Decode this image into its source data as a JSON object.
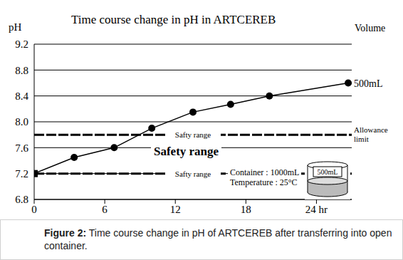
{
  "chart_data": {
    "type": "line",
    "title": "Time course change in pH in ARTCEREB",
    "y_label": "pH",
    "legend_title": "Volume",
    "x": [
      0,
      3.4,
      6.8,
      10,
      13.5,
      16.7,
      20,
      26.7
    ],
    "series": [
      {
        "name": "500mL",
        "color": "#000000",
        "marker": "circle",
        "line_style": "solid",
        "values": [
          7.2,
          7.45,
          7.6,
          7.9,
          8.15,
          8.27,
          8.4,
          8.6
        ]
      }
    ],
    "xlim": [
      0,
      27
    ],
    "xticks": [
      0,
      6,
      12,
      18,
      {
        "value": 24,
        "label": "24 hr"
      }
    ],
    "ylim": [
      6.8,
      9.2
    ],
    "yticks": [
      6.8,
      7.2,
      7.6,
      {
        "value": 8,
        "label": "8.0"
      },
      8.4,
      8.8,
      9.2
    ],
    "grid": true,
    "reference_lines": [
      {
        "value": 7.8,
        "label": "Safty range",
        "end_label": "Allowance limit"
      },
      {
        "value": 7.2,
        "label": "Safty range"
      }
    ],
    "annotations": [
      "Safety range"
    ],
    "inset": {
      "lines": [
        "Container : 1000mL",
        "Temperature : 25°C"
      ],
      "icon_label": "500mL"
    },
    "caption": "Figure 2: Time course change in pH of ARTCEREB after transferring into open container."
  }
}
